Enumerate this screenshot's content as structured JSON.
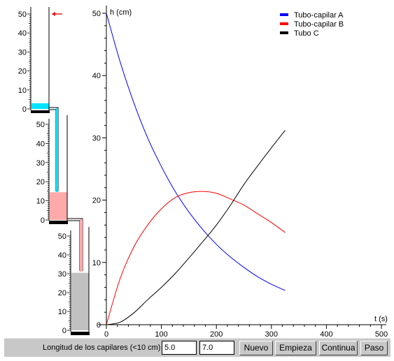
{
  "colors": {
    "tube_a_liquid": "#00e5ff",
    "tube_b_liquid": "#ffaaaa",
    "tube_c_liquid": "#c0c0c0",
    "arrow": "#e00000"
  },
  "tubes": {
    "a": {
      "ticks": [
        "0",
        "10",
        "20",
        "30",
        "40",
        "50"
      ],
      "level": 3.0
    },
    "b": {
      "ticks": [
        "0",
        "10",
        "20",
        "30",
        "40",
        "50"
      ],
      "level": 14.5
    },
    "c": {
      "ticks": [
        "0",
        "10",
        "20",
        "30",
        "40",
        "50"
      ],
      "level": 30.5
    }
  },
  "chart_data": {
    "type": "line",
    "ylabel": "h (cm)",
    "xlabel": "t (s)",
    "xlim": [
      0,
      500
    ],
    "ylim": [
      0,
      50
    ],
    "x_ticks": [
      "0",
      "100",
      "200",
      "300",
      "400",
      "500"
    ],
    "y_ticks": [
      "0",
      "10",
      "20",
      "30",
      "40",
      "50"
    ],
    "legend_position": "top-right",
    "x": [
      0,
      25,
      50,
      75,
      100,
      125,
      150,
      175,
      200,
      225,
      250,
      275,
      300,
      325
    ],
    "series": [
      {
        "name": "Tubo-capilar A",
        "color": "#0000ff",
        "values": [
          50,
          42.2,
          35.6,
          30.0,
          25.4,
          21.4,
          18.1,
          15.3,
          12.9,
          10.9,
          9.2,
          7.7,
          6.5,
          5.5
        ]
      },
      {
        "name": "Tubo-capilar B",
        "color": "#ff0000",
        "values": [
          0,
          7.4,
          12.5,
          16.0,
          18.6,
          20.4,
          21.2,
          21.4,
          21.1,
          20.2,
          19.2,
          17.8,
          16.4,
          14.8
        ]
      },
      {
        "name": "Tubo C",
        "color": "#000000",
        "values": [
          0,
          0.4,
          1.9,
          4.0,
          6.0,
          8.2,
          10.7,
          13.3,
          16.0,
          19.1,
          22.5,
          25.5,
          28.4,
          31.2
        ]
      }
    ]
  },
  "controls": {
    "length_label": "Longitud de los capilares (<10 cm)",
    "length_a": "5.0",
    "length_b": "7.0",
    "buttons": {
      "nuevo": "Nuevo",
      "empieza": "Empieza",
      "continua": "Continua",
      "paso": "Paso"
    }
  }
}
